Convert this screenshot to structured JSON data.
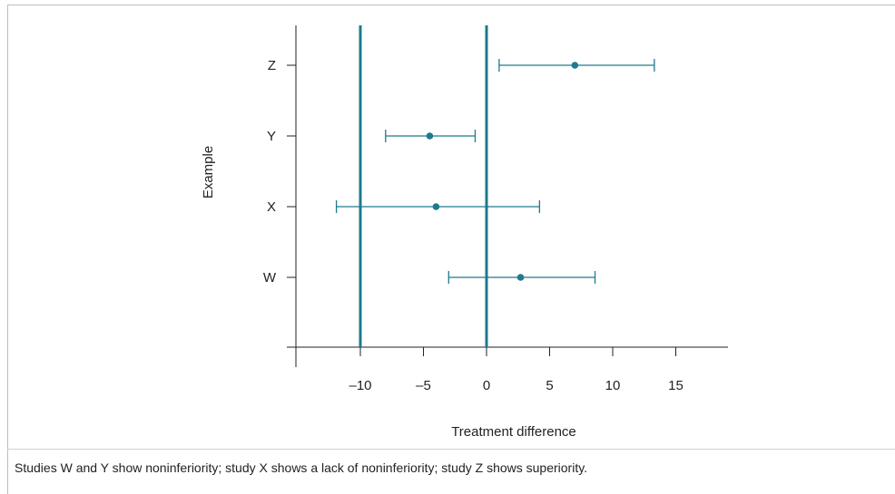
{
  "chart_data": {
    "type": "scatter",
    "subtype": "forest-plot",
    "xlabel": "Treatment difference",
    "ylabel": "Example",
    "x_ticks": [
      "–10",
      "–5",
      "0",
      "5",
      "10",
      "15"
    ],
    "x_tick_values": [
      -10,
      -5,
      0,
      5,
      10,
      15
    ],
    "xlim": [
      -15,
      19
    ],
    "categories": [
      "W",
      "X",
      "Y",
      "Z"
    ],
    "reference_lines": [
      -10,
      0
    ],
    "points": [
      {
        "label": "W",
        "estimate": 2.7,
        "lower": -3.0,
        "upper": 8.6
      },
      {
        "label": "X",
        "estimate": -4.0,
        "lower": -11.9,
        "upper": 4.2
      },
      {
        "label": "Y",
        "estimate": -4.5,
        "lower": -8.0,
        "upper": -0.9
      },
      {
        "label": "Z",
        "estimate": 7.0,
        "lower": 1.0,
        "upper": 13.3
      }
    ],
    "grid": false,
    "colors": {
      "series": "#1e7a8c",
      "reference": "#1e7a8c",
      "axis": "#222222"
    }
  },
  "caption": "Studies W and Y show noninferiority; study X shows a lack of noninferiority; study Z shows superiority."
}
